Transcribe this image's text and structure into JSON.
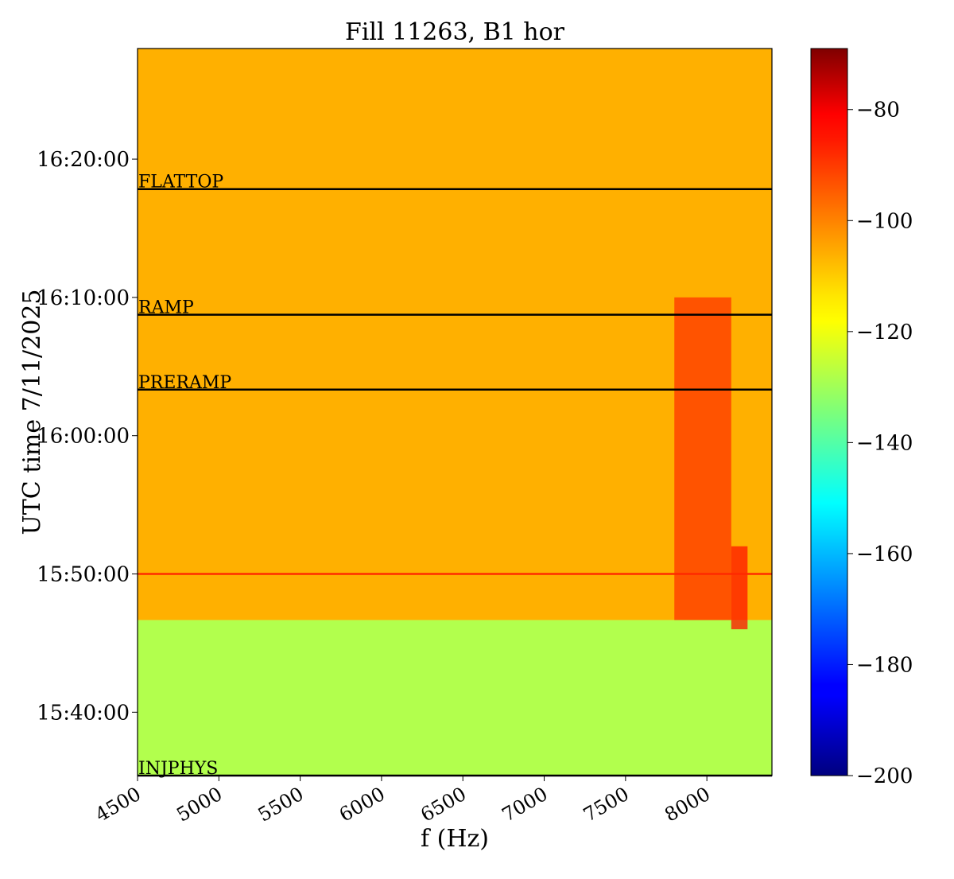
{
  "chart_data": {
    "type": "heatmap",
    "title": "Fill 11263, B1 hor",
    "xlabel": "f (Hz)",
    "ylabel": "UTC time 7/11/2025",
    "xlim": [
      4500,
      8400
    ],
    "ylim": [
      "15:35:25",
      "16:28:00"
    ],
    "x_ticks": [
      4500,
      5000,
      5500,
      6000,
      6500,
      7000,
      7500,
      8000
    ],
    "y_ticks": [
      "15:40:00",
      "15:50:00",
      "16:00:00",
      "16:10:00",
      "16:20:00"
    ],
    "colormap": "jet",
    "colorbar": {
      "range": [
        -200,
        -69
      ],
      "ticks": [
        -80,
        -100,
        -120,
        -140,
        -160,
        -180,
        -200
      ],
      "tick_labels": [
        "−80",
        "−100",
        "−120",
        "−140",
        "−160",
        "−180",
        "−200"
      ]
    },
    "background_levels": [
      {
        "time_range": [
          "15:35:25",
          "15:46:40"
        ],
        "level": -128
      },
      {
        "time_range": [
          "15:46:40",
          "16:28:00"
        ],
        "level": -108
      }
    ],
    "lines": [
      {
        "label": "FLATTOP",
        "time": "16:17:50",
        "color": "#000000"
      },
      {
        "label": "RAMP",
        "time": "16:08:45",
        "color": "#000000"
      },
      {
        "label": "PRERAMP",
        "time": "16:03:20",
        "color": "#000000"
      },
      {
        "label": "",
        "time": "15:50:00",
        "color": "#ff2a00"
      },
      {
        "label": "INJPHYS",
        "time": "15:35:25",
        "color": "#000000"
      }
    ],
    "hot_bands": [
      {
        "f_range": [
          7800,
          8150
        ],
        "time_range": [
          "15:46:40",
          "16:10:00"
        ],
        "level": -92
      },
      {
        "f_range": [
          8150,
          8250
        ],
        "time_range": [
          "15:46:00",
          "15:52:00"
        ],
        "level": -88
      }
    ]
  }
}
